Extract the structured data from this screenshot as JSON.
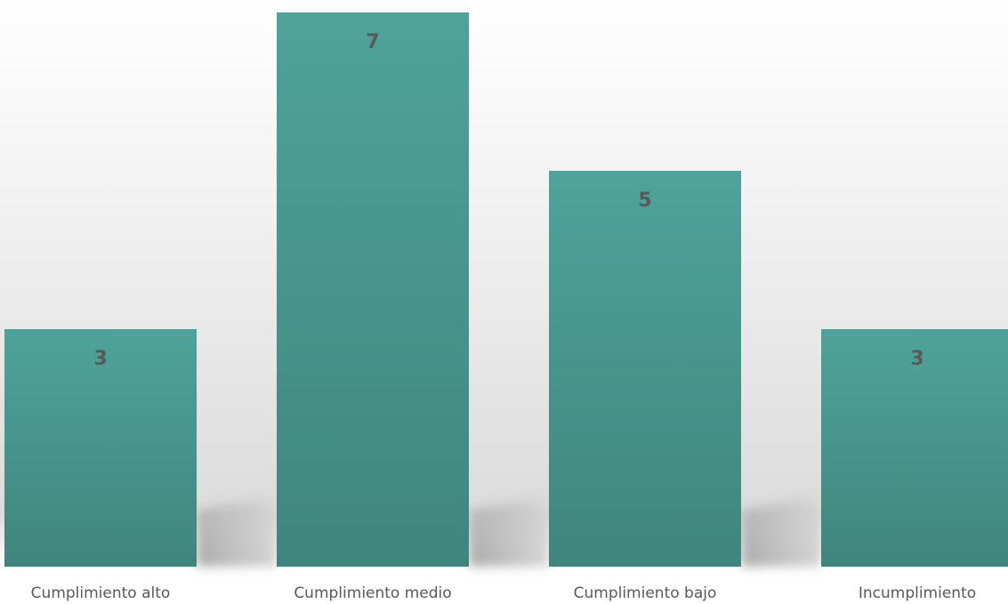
{
  "chart_data": {
    "type": "bar",
    "categories": [
      "Cumplimiento alto",
      "Cumplimiento medio",
      "Cumplimiento bajo",
      "Incumplimiento"
    ],
    "values": [
      3,
      7,
      5,
      3
    ],
    "ylim": [
      0,
      7
    ],
    "grid": false,
    "legend": "none",
    "data_labels": true,
    "title": "",
    "xlabel": "",
    "ylabel": "",
    "colors": {
      "bar_top": "#4ea39a",
      "bar_bottom": "#40857d",
      "shadow": "#8c8c8c",
      "label": "#595959"
    }
  }
}
